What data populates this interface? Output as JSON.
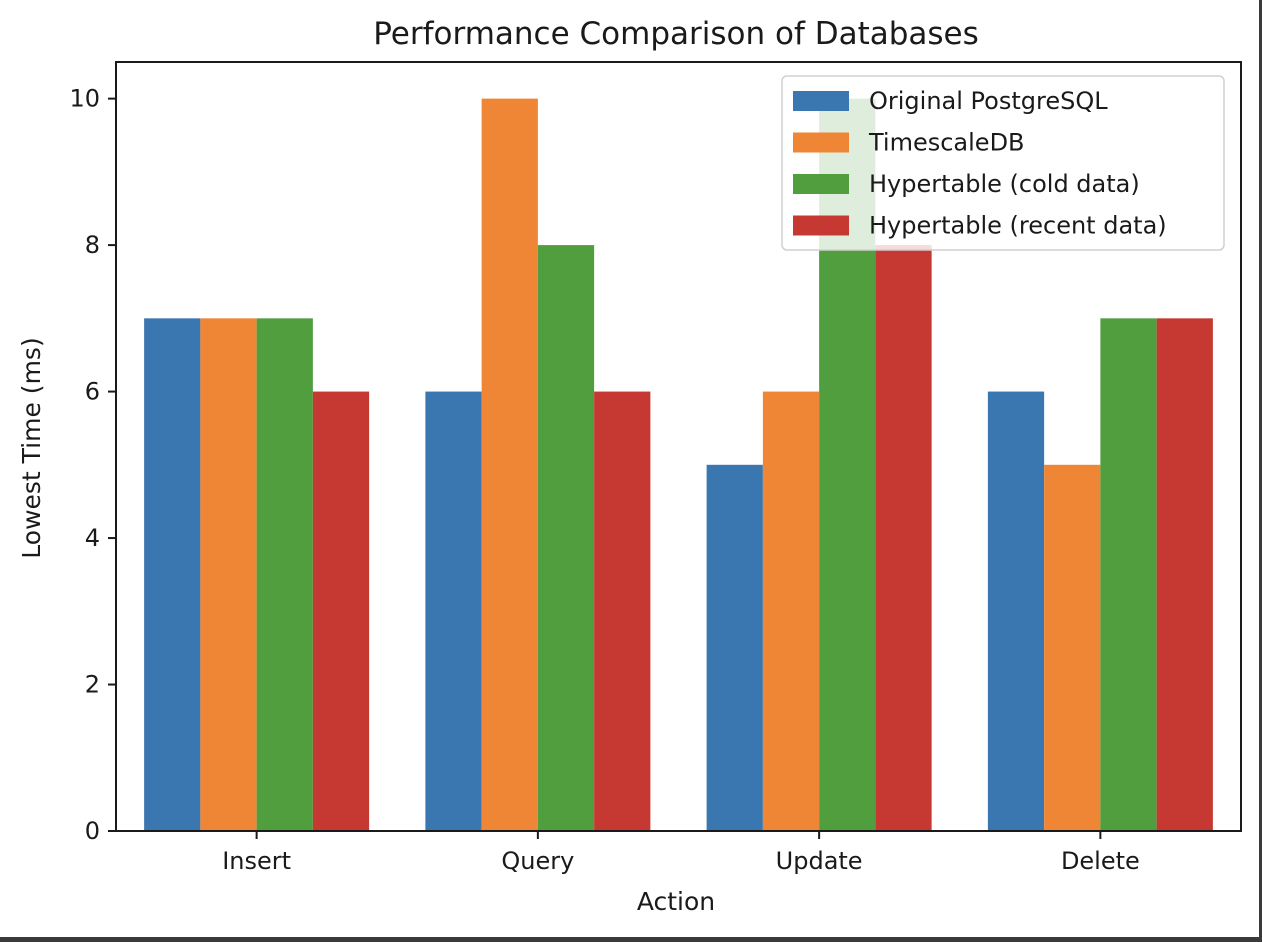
{
  "chart_data": {
    "type": "bar",
    "title": "Performance Comparison of Databases",
    "xlabel": "Action",
    "ylabel": "Lowest Time (ms)",
    "categories": [
      "Insert",
      "Query",
      "Update",
      "Delete"
    ],
    "ylim": [
      0,
      10.5
    ],
    "yticks": [
      0,
      2,
      4,
      6,
      8,
      10
    ],
    "grid": false,
    "legend_position": "top-right",
    "series": [
      {
        "name": "Original PostgreSQL",
        "color": "#3a76af",
        "values": [
          7,
          6,
          5,
          6
        ]
      },
      {
        "name": "TimescaleDB",
        "color": "#ef8636",
        "values": [
          7,
          10,
          6,
          5
        ]
      },
      {
        "name": "Hypertable (cold data)",
        "color": "#519e3e",
        "values": [
          7,
          8,
          10,
          7
        ]
      },
      {
        "name": "Hypertable (recent data)",
        "color": "#c53932",
        "values": [
          6,
          6,
          8,
          7
        ]
      }
    ]
  }
}
